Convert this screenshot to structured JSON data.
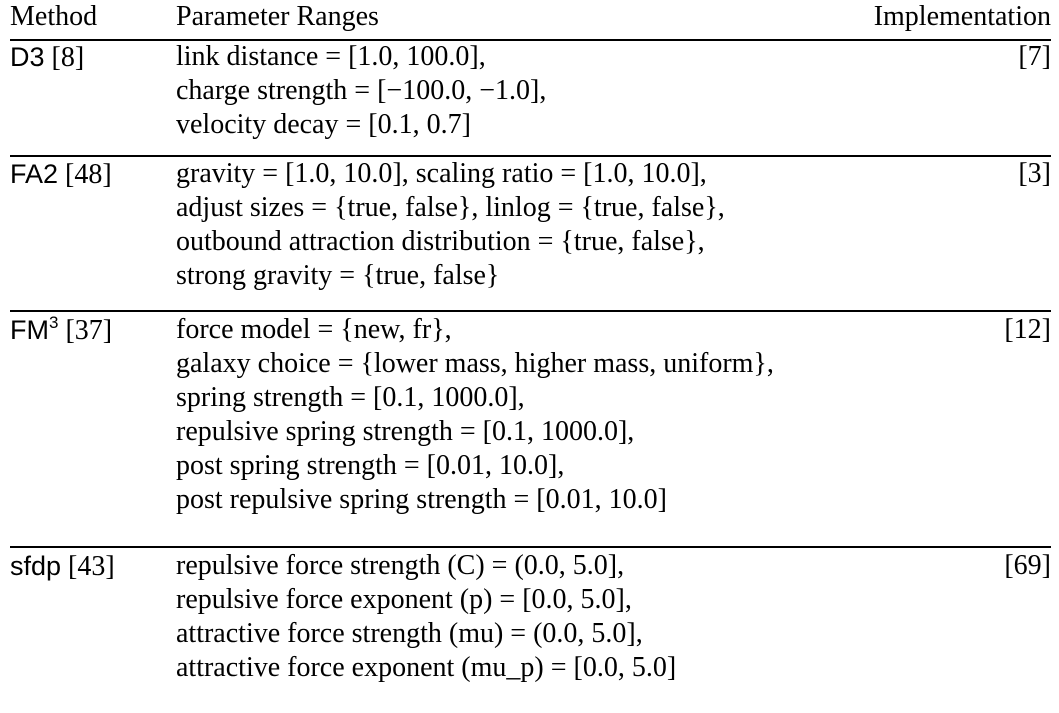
{
  "header": {
    "method": "Method",
    "parameters": "Parameter Ranges",
    "implementation": "Implementation"
  },
  "rows": [
    {
      "method": "D3",
      "method_sup": "",
      "citation": "[8]",
      "implementation": "[7]",
      "parameters": [
        "link distance = [1.0,  100.0],",
        "charge strength = [−100.0,  −1.0],",
        "velocity decay = [0.1,  0.7]"
      ]
    },
    {
      "method": "FA2",
      "method_sup": "",
      "citation": "[48]",
      "implementation": "[3]",
      "parameters": [
        "gravity = [1.0,  10.0], scaling ratio = [1.0,  10.0],",
        "adjust sizes = {true,  false}, linlog = {true,  false},",
        "outbound attraction distribution = {true,  false},",
        "strong gravity = {true,  false}"
      ]
    },
    {
      "method": "FM",
      "method_sup": "3",
      "citation": "[37]",
      "implementation": "[12]",
      "parameters": [
        "force model = {new,  fr},",
        "galaxy choice =  {lower mass,  higher mass,  uniform},",
        "spring strength = [0.1,  1000.0],",
        "repulsive spring strength =  [0.1,  1000.0],",
        "post spring strength =  [0.01,  10.0],",
        "post repulsive spring strength =  [0.01,  10.0]"
      ]
    },
    {
      "method": "sfdp",
      "method_sup": "",
      "citation": "[43]",
      "implementation": "[69]",
      "parameters": [
        "repulsive force strength (C) = (0.0, 5.0],",
        "repulsive force exponent (p)  = [0.0, 5.0],",
        "attractive force strength (mu) = (0.0, 5.0],",
        "attractive force exponent (mu_p)  = [0.0, 5.0]"
      ]
    }
  ]
}
